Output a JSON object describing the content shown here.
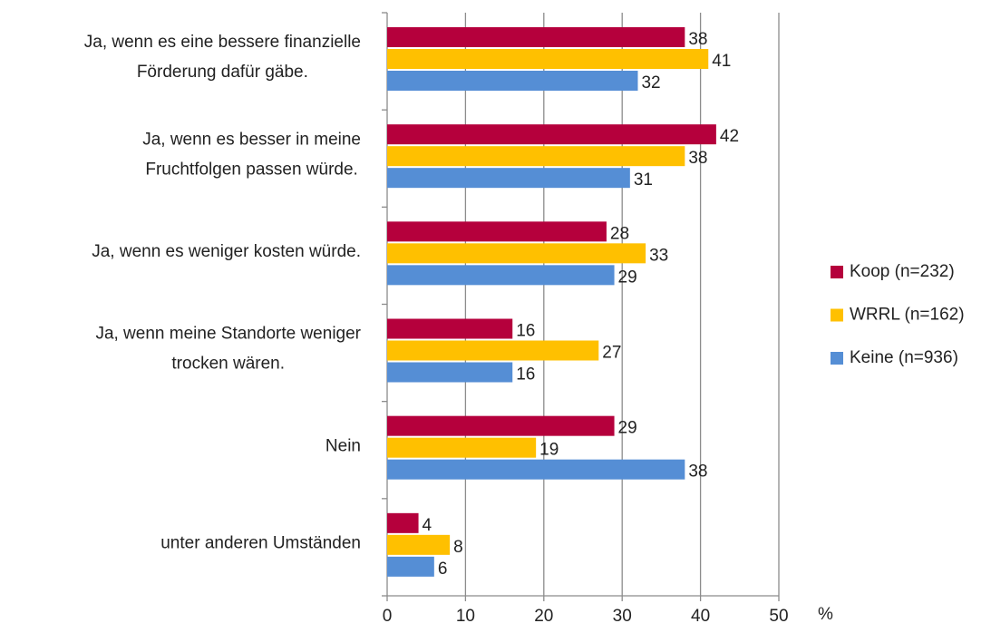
{
  "chart_data": {
    "type": "hbar",
    "categories": [
      "Ja, wenn es eine bessere finanzielle\nFörderung dafür gäbe.",
      "Ja, wenn es besser in meine\nFruchtfolgen passen würde.",
      "Ja, wenn es weniger kosten würde.",
      "Ja, wenn meine Standorte weniger\ntrocken wären.",
      "Nein",
      "unter anderen Umständen"
    ],
    "series": [
      {
        "name": "Koop (n=232)",
        "color": "#b5003c",
        "values": [
          38,
          42,
          28,
          16,
          29,
          4
        ]
      },
      {
        "name": "WRRL (n=162)",
        "color": "#ffc000",
        "values": [
          41,
          38,
          33,
          27,
          19,
          8
        ]
      },
      {
        "name": "Keine (n=936)",
        "color": "#558ed5",
        "values": [
          32,
          31,
          29,
          16,
          38,
          6
        ]
      }
    ],
    "x_label": "%",
    "xlim": [
      0,
      50
    ],
    "xticks": [
      0,
      10,
      20,
      30,
      40,
      50
    ],
    "grid": true,
    "legend": "right"
  }
}
